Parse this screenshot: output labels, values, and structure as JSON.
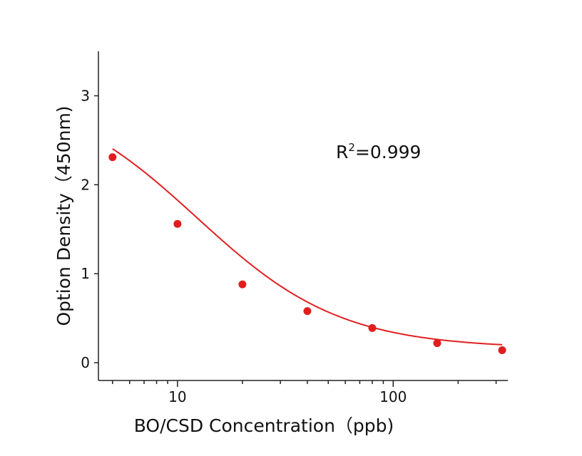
{
  "chart_data": {
    "type": "scatter",
    "xlabel": "BO/CSD Concentration（ppb)",
    "ylabel": "Option Density（450nm)",
    "x_scale": "log",
    "xlim": [
      4.3,
      340
    ],
    "ylim": [
      -0.2,
      3.5
    ],
    "x_ticks": [
      10,
      100
    ],
    "x_tick_labels": [
      "10",
      "100"
    ],
    "y_ticks": [
      0,
      1,
      2,
      3
    ],
    "y_tick_labels": [
      "0",
      "1",
      "2",
      "3"
    ],
    "points": {
      "x": [
        5,
        10,
        20,
        40,
        80,
        160,
        320
      ],
      "y": [
        2.31,
        1.56,
        0.88,
        0.58,
        0.39,
        0.22,
        0.14
      ]
    },
    "fit_curve": {
      "model": "4PL",
      "top": 3.1,
      "bottom": 0.16,
      "ec50": 12.3,
      "hill": 1.3
    },
    "annotation": {
      "base": "R",
      "sup": "2",
      "rest": "=0.999"
    },
    "colors": {
      "points": "#e01e1e",
      "curve": "#e02020",
      "axis": "#222222"
    },
    "grid": false,
    "legend": "none"
  }
}
